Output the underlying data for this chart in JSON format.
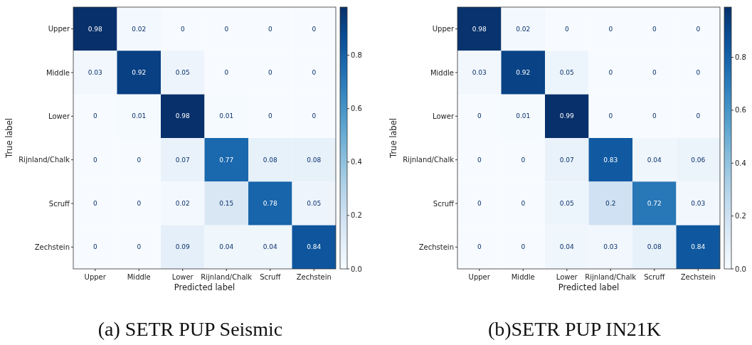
{
  "chart_data": [
    {
      "type": "heatmap",
      "title": "(a) SETR PUP Seismic",
      "xlabel": "Predicted label",
      "ylabel": "True label",
      "categories": [
        "Upper",
        "Middle",
        "Lower",
        "Rijnland/Chalk",
        "Scruff",
        "Zechstein"
      ],
      "y_categories": [
        "Upper",
        "Middle",
        "Lower",
        "Rijnland/Chalk",
        "Scruff",
        "Zechstein"
      ],
      "cells": [
        [
          0.98,
          0.02,
          0,
          0,
          0,
          0
        ],
        [
          0.03,
          0.92,
          0.05,
          0,
          0,
          0
        ],
        [
          0,
          0.01,
          0.98,
          0.01,
          0,
          0
        ],
        [
          0,
          0,
          0.07,
          0.77,
          0.08,
          0.08
        ],
        [
          0,
          0,
          0.02,
          0.15,
          0.78,
          0.05
        ],
        [
          0,
          0,
          0.09,
          0.04,
          0.04,
          0.84
        ]
      ],
      "data_labels": true,
      "clim": [
        0,
        0.98
      ],
      "cticks": [
        {
          "value": 0,
          "label": "0.0"
        },
        {
          "value": 0.2,
          "label": "0.2"
        },
        {
          "value": 0.4,
          "label": "0.4"
        },
        {
          "value": 0.6,
          "label": "0.6"
        },
        {
          "value": 0.8,
          "label": "0.8"
        }
      ]
    },
    {
      "type": "heatmap",
      "title": "(b)SETR PUP IN21K",
      "xlabel": "Predicted label",
      "ylabel": "True label",
      "categories": [
        "Upper",
        "Middle",
        "Lower",
        "Rijnland/Chalk",
        "Scruff",
        "Zechstein"
      ],
      "y_categories": [
        "Upper",
        "Middle",
        "Lower",
        "Rijnland/Chalk",
        "Scruff",
        "Zechstein"
      ],
      "cells": [
        [
          0.98,
          0.02,
          0,
          0,
          0,
          0
        ],
        [
          0.03,
          0.92,
          0.05,
          0,
          0,
          0
        ],
        [
          0,
          0.01,
          0.99,
          0,
          0,
          0
        ],
        [
          0,
          0,
          0.07,
          0.83,
          0.04,
          0.06
        ],
        [
          0,
          0,
          0.05,
          0.2,
          0.72,
          0.03
        ],
        [
          0,
          0,
          0.04,
          0.03,
          0.08,
          0.84
        ]
      ],
      "data_labels": true,
      "clim": [
        0,
        0.99
      ],
      "cticks": [
        {
          "value": 0,
          "label": "0.0"
        },
        {
          "value": 0.2,
          "label": "0.2"
        },
        {
          "value": 0.4,
          "label": "0.4"
        },
        {
          "value": 0.6,
          "label": "0.6"
        },
        {
          "value": 0.8,
          "label": "0.8"
        }
      ]
    }
  ]
}
